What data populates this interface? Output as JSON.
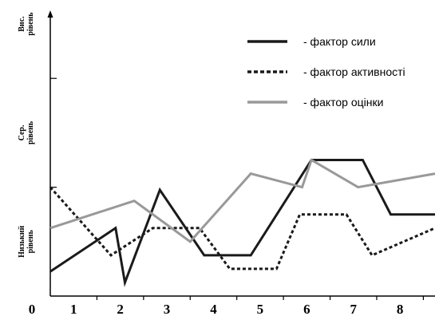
{
  "chart_data": {
    "type": "line",
    "title": "",
    "xlabel": "",
    "ylabel": "",
    "xlim": [
      0,
      8.25
    ],
    "ylim": [
      0,
      10.5
    ],
    "x_ticks": [
      "0",
      "1",
      "2",
      "3",
      "4",
      "5",
      "6",
      "7",
      "8"
    ],
    "y_levels": [
      {
        "line1": "Низький",
        "line2": "рівень",
        "low": 0,
        "high": 4
      },
      {
        "line1": "Сер.",
        "line2": "рівень",
        "low": 4,
        "high": 8
      },
      {
        "line1": "Вис.",
        "line2": "рівень",
        "low": 8,
        "high": 12
      }
    ],
    "legend_position": "top-right",
    "series": [
      {
        "name": "- фактор сили",
        "color": "#1a1a1a",
        "dash": "solid",
        "points": [
          [
            0,
            0.9
          ],
          [
            1.4,
            2.5
          ],
          [
            1.6,
            0.5
          ],
          [
            2.35,
            3.9
          ],
          [
            3.3,
            1.5
          ],
          [
            4.3,
            1.5
          ],
          [
            5.6,
            5.0
          ],
          [
            6.7,
            5.0
          ],
          [
            7.3,
            3.0
          ],
          [
            8.25,
            3.0
          ]
        ]
      },
      {
        "name": "- фактор активності",
        "color": "#1a1a1a",
        "dash": "dotted",
        "points": [
          [
            0,
            4.0
          ],
          [
            1.3,
            1.5
          ],
          [
            2.2,
            2.5
          ],
          [
            3.2,
            2.5
          ],
          [
            3.85,
            1.0
          ],
          [
            4.85,
            1.0
          ],
          [
            5.35,
            3.0
          ],
          [
            6.35,
            3.0
          ],
          [
            6.9,
            1.5
          ],
          [
            8.25,
            2.5
          ]
        ]
      },
      {
        "name": "- фактор оцінки",
        "color": "#999999",
        "dash": "solid",
        "points": [
          [
            0,
            2.5
          ],
          [
            1.8,
            3.5
          ],
          [
            3.0,
            2.0
          ],
          [
            4.3,
            4.5
          ],
          [
            5.4,
            4.0
          ],
          [
            5.6,
            5.0
          ],
          [
            6.6,
            4.0
          ],
          [
            8.25,
            4.5
          ]
        ]
      }
    ]
  }
}
